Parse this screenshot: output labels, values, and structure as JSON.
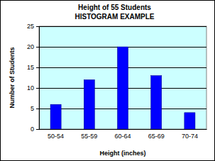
{
  "chart_data": {
    "type": "bar",
    "title": "Height of 55 Students",
    "subtitle": "HISTOGRAM EXAMPLE",
    "x_label": "Height (inches)",
    "y_label": "Number of Students",
    "categories": [
      "50-54",
      "55-59",
      "60-64",
      "65-69",
      "70-74"
    ],
    "values": [
      6,
      12,
      20,
      13,
      4
    ],
    "color": "#0000ff",
    "ylim": [
      0,
      25
    ],
    "yticks": [
      0,
      5,
      10,
      15,
      20,
      25
    ],
    "grid": true
  }
}
